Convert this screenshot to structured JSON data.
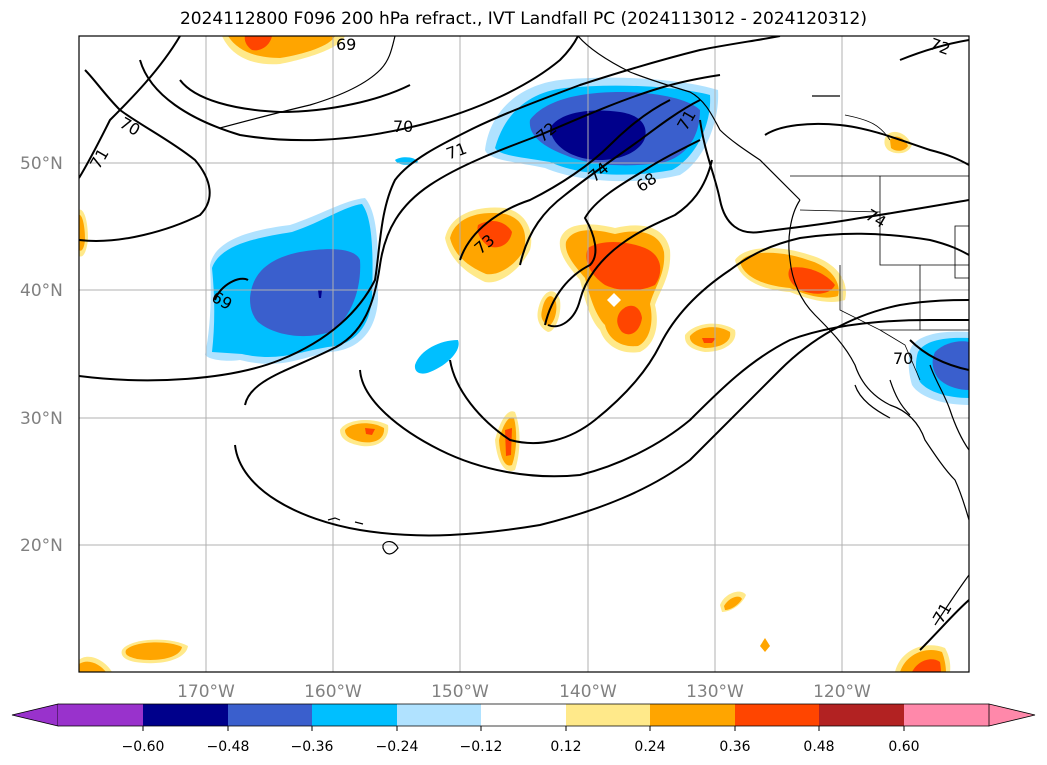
{
  "title": "2024112800 F096 200 hPa refract., IVT Landfall PC (2024113012 - 2024120312)",
  "map": {
    "lat_labels": [
      "50°N",
      "40°N",
      "30°N",
      "20°N"
    ],
    "lon_labels": [
      "170°W",
      "160°W",
      "150°W",
      "140°W",
      "130°W",
      "120°W"
    ],
    "gridlines": true,
    "contour_labels": [
      "69",
      "70",
      "71",
      "72",
      "73",
      "74",
      "68",
      "69",
      "70",
      "71",
      "72",
      "71",
      "74",
      "70",
      "71"
    ]
  },
  "colorbar": {
    "orientation": "horizontal",
    "extend": "both",
    "ticks": [
      "−0.60",
      "−0.48",
      "−0.36",
      "−0.24",
      "−0.12",
      "0.12",
      "0.24",
      "0.36",
      "0.48",
      "0.60"
    ],
    "colors": {
      "lt_-0.60": "#9932cc",
      "-0.60_-0.48": "#00008b",
      "-0.48_-0.36": "#3a5fcd",
      "-0.36_-0.24": "#00bfff",
      "-0.24_-0.12": "#b0e2ff",
      "-0.12_0.12": "#ffffff",
      "0.12_0.24": "#ffe98a",
      "0.24_0.36": "#ffa500",
      "0.36_0.48": "#ff4500",
      "0.48_0.60": "#b22222",
      "gt_0.60": "#ff88aa"
    }
  }
}
